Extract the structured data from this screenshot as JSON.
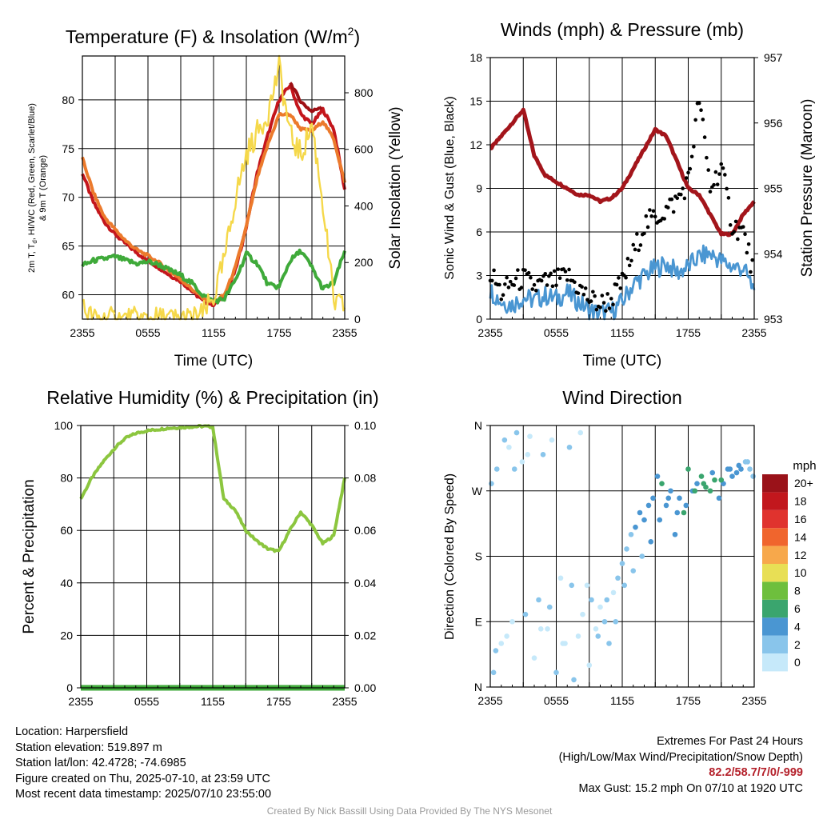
{
  "colors": {
    "red": "#c4161c",
    "darkred": "#9e0f14",
    "orange": "#ec7a2c",
    "green": "#3faa3a",
    "yellow": "#f5d84a",
    "blue": "#4a96d2",
    "maroon": "#a3151b",
    "rh_green": "#8cc63f",
    "precip_green": "#3faa3a",
    "grid": "#000000"
  },
  "chart_data": [
    {
      "type": "line",
      "title_main": "Temperature (F) & Insolation (W/m",
      "title_sup": "2",
      "title_end": ")",
      "xlabel": "Time (UTC)",
      "ylabel_left_main": "2m T, T",
      "ylabel_left_line2": "& 9m T (Orange)",
      "ylabel_right": "Solar Insolation (Yellow)",
      "x_ticks": [
        "2355",
        "0555",
        "1155",
        "1755",
        "2355"
      ],
      "ylim_left": [
        57.5,
        84.5
      ],
      "y_ticks_left": [
        60,
        65,
        70,
        75,
        80
      ],
      "ylim_right": [
        0,
        930
      ],
      "y_ticks_right": [
        0,
        200,
        400,
        600,
        800
      ],
      "x_hours": [
        0,
        1,
        2,
        3,
        4,
        5,
        6,
        7,
        8,
        9,
        10,
        11,
        12,
        13,
        14,
        15,
        16,
        17,
        18,
        19,
        20,
        21,
        22,
        23,
        24
      ],
      "series": [
        {
          "key": "temp_2m",
          "color": "#c4161c",
          "axis": "left",
          "values": [
            72.5,
            69.5,
            67.5,
            66.2,
            65.2,
            64.3,
            63.5,
            62.8,
            62.0,
            61.4,
            60.4,
            59.4,
            59.0,
            59.8,
            62.5,
            67.0,
            72.5,
            76.5,
            80.0,
            81.5,
            78.5,
            77.5,
            79.0,
            77.0,
            70.8
          ]
        },
        {
          "key": "heat_index",
          "color": "#9e0f14",
          "axis": "left",
          "values": [
            null,
            null,
            null,
            null,
            null,
            null,
            null,
            null,
            null,
            null,
            null,
            null,
            null,
            null,
            null,
            null,
            null,
            null,
            null,
            81.8,
            79.8,
            78.8,
            79.4,
            null,
            null
          ]
        },
        {
          "key": "temp_9m",
          "color": "#ec7a2c",
          "axis": "left",
          "values": [
            74.0,
            70.5,
            68.0,
            66.7,
            65.5,
            64.6,
            64.0,
            63.3,
            62.4,
            61.6,
            60.6,
            59.7,
            59.2,
            60.0,
            62.8,
            67.0,
            72.0,
            75.5,
            78.5,
            78.5,
            77.0,
            76.8,
            77.8,
            76.0,
            71.5
          ]
        },
        {
          "key": "dewpoint",
          "color": "#3faa3a",
          "axis": "left",
          "values": [
            63.0,
            63.5,
            63.7,
            63.9,
            63.5,
            63.2,
            63.4,
            63.1,
            62.5,
            62.0,
            61.2,
            60.0,
            59.3,
            59.6,
            61.5,
            64.2,
            63.2,
            61.0,
            60.8,
            63.5,
            64.5,
            62.8,
            60.6,
            61.2,
            64.5
          ]
        },
        {
          "key": "insolation",
          "color": "#f5d84a",
          "axis": "right",
          "values": [
            40,
            0,
            0,
            0,
            0,
            0,
            0,
            0,
            0,
            0,
            0,
            15,
            75,
            210,
            430,
            580,
            660,
            730,
            890,
            650,
            580,
            690,
            410,
            60,
            40
          ]
        }
      ]
    },
    {
      "type": "line",
      "title": "Winds (mph) & Pressure (mb)",
      "xlabel": "Time (UTC)",
      "ylabel_left": "Sonic Wind & Gust (Blue, Black)",
      "ylabel_right": "Station Pressure (Maroon)",
      "x_ticks": [
        "2355",
        "0555",
        "1155",
        "1755",
        "2355"
      ],
      "ylim_left": [
        0,
        18
      ],
      "y_ticks_left": [
        0,
        3,
        6,
        9,
        12,
        15,
        18
      ],
      "ylim_right": [
        953,
        957
      ],
      "y_ticks_right": [
        953,
        954,
        955,
        956,
        957
      ],
      "x_hours": [
        0,
        1,
        2,
        3,
        4,
        5,
        6,
        7,
        8,
        9,
        10,
        11,
        12,
        13,
        14,
        15,
        16,
        17,
        18,
        19,
        20,
        21,
        22,
        23,
        24
      ],
      "series": [
        {
          "key": "pressure",
          "color": "#a3151b",
          "axis": "right",
          "values": [
            955.6,
            955.8,
            956.0,
            956.2,
            955.5,
            955.2,
            955.1,
            955.0,
            954.9,
            954.9,
            954.8,
            954.85,
            955.0,
            955.3,
            955.6,
            955.9,
            955.8,
            955.4,
            955.0,
            954.9,
            954.6,
            954.3,
            954.3,
            954.6,
            954.8
          ]
        },
        {
          "key": "wind",
          "color": "#4a96d2",
          "axis": "left",
          "values": [
            2.0,
            1.2,
            1.0,
            1.5,
            1.3,
            1.6,
            1.4,
            1.8,
            1.2,
            0.6,
            0.4,
            0.5,
            1.2,
            2.4,
            3.0,
            3.5,
            3.8,
            3.2,
            3.6,
            4.3,
            4.5,
            4.0,
            3.6,
            3.5,
            2.0
          ]
        },
        {
          "key": "gust",
          "color": "#000000",
          "axis": "left",
          "values": [
            3.2,
            1.8,
            2.5,
            2.8,
            2.2,
            2.5,
            2.6,
            3.0,
            2.2,
            1.4,
            1.0,
            1.4,
            2.5,
            4.5,
            6.5,
            7.0,
            7.5,
            8.2,
            9.5,
            15.2,
            9.0,
            10.5,
            6.5,
            6.0,
            3.0
          ]
        }
      ]
    },
    {
      "type": "line",
      "title": "Relative Humidity (%) & Precipitation (in)",
      "ylabel_left": "Percent & Precipitation",
      "x_ticks": [
        "2355",
        "0555",
        "1155",
        "1755",
        "2355"
      ],
      "ylim_left": [
        0,
        100
      ],
      "y_ticks_left": [
        0,
        20,
        40,
        60,
        80,
        100
      ],
      "ylim_right": [
        0,
        0.1
      ],
      "y_ticks_right": [
        "0.00",
        "0.02",
        "0.04",
        "0.06",
        "0.08",
        "0.10"
      ],
      "x_hours": [
        0,
        1,
        2,
        3,
        4,
        5,
        6,
        7,
        8,
        9,
        10,
        11,
        12,
        13,
        14,
        15,
        16,
        17,
        18,
        19,
        20,
        21,
        22,
        23,
        24
      ],
      "series": [
        {
          "key": "rh",
          "color": "#8cc63f",
          "axis": "left",
          "values": [
            72,
            80,
            86,
            91,
            95,
            97,
            98,
            98.5,
            99,
            99.2,
            99.5,
            99.7,
            99.5,
            72,
            68,
            60,
            56,
            53,
            52,
            60,
            67,
            62,
            55,
            58,
            80
          ]
        },
        {
          "key": "precip",
          "color": "#3faa3a",
          "axis": "right",
          "values": [
            0,
            0,
            0,
            0,
            0,
            0,
            0,
            0,
            0,
            0,
            0,
            0,
            0,
            0,
            0,
            0,
            0,
            0,
            0,
            0,
            0,
            0,
            0,
            0,
            0
          ]
        }
      ]
    },
    {
      "type": "scatter",
      "title": "Wind Direction",
      "ylabel_left": "Direction (Colored By Speed)",
      "x_ticks": [
        "2355",
        "0555",
        "1155",
        "1755",
        "2355"
      ],
      "y_ticks": [
        "N",
        "E",
        "S",
        "W",
        "N"
      ],
      "ylim": [
        0,
        360
      ],
      "legend_title": "mph",
      "legend_labels": [
        "0",
        "2",
        "4",
        "6",
        "8",
        "10",
        "12",
        "14",
        "16",
        "18",
        "20+"
      ],
      "legend_colors": [
        "#c6e9fa",
        "#89c5eb",
        "#4a96d2",
        "#3aa56e",
        "#6ebf3d",
        "#e8df55",
        "#f7a84b",
        "#f0652d",
        "#e0332e",
        "#c2171d",
        "#9a1219"
      ],
      "points_hour": [
        0.1,
        0.3,
        0.6,
        1.0,
        1.3,
        1.7,
        2.0,
        2.4,
        2.9,
        3.2,
        3.6,
        4.0,
        4.4,
        4.8,
        5.2,
        5.6,
        6.0,
        6.4,
        6.8,
        7.2,
        7.6,
        8.0,
        8.4,
        8.8,
        9.2,
        9.6,
        10.0,
        10.4,
        10.8,
        11.2,
        11.6,
        12.0,
        12.4,
        12.8,
        13.2,
        13.6,
        14.0,
        14.4,
        14.8,
        15.2,
        15.6,
        16.0,
        16.4,
        16.8,
        17.2,
        17.6,
        18.0,
        18.4,
        18.8,
        19.2,
        19.6,
        20.0,
        20.4,
        20.8,
        21.2,
        21.6,
        22.0,
        22.4,
        22.8,
        23.2,
        23.6,
        23.9,
        0.5,
        1.5,
        2.2,
        3.4,
        4.6,
        5.4,
        6.6,
        7.4,
        8.2,
        9.0,
        9.8,
        10.6,
        11.4,
        12.2,
        13.0,
        13.8,
        14.6,
        15.4,
        16.2,
        17.0,
        17.8,
        18.6,
        19.4,
        20.2,
        21.0,
        21.8,
        22.6,
        23.4
      ],
      "points_dir": [
        280,
        20,
        300,
        60,
        340,
        330,
        90,
        350,
        310,
        100,
        345,
        40,
        120,
        320,
        80,
        340,
        20,
        150,
        60,
        330,
        10,
        70,
        100,
        140,
        120,
        80,
        110,
        90,
        60,
        130,
        150,
        170,
        190,
        210,
        220,
        240,
        230,
        250,
        260,
        290,
        280,
        250,
        270,
        210,
        260,
        240,
        300,
        270,
        280,
        290,
        275,
        270,
        285,
        260,
        280,
        300,
        290,
        295,
        300,
        310,
        300,
        290,
        50,
        70,
        300,
        320,
        80,
        110,
        60,
        140,
        350,
        30,
        70,
        120,
        90,
        140,
        160,
        180,
        200,
        230,
        260,
        240,
        250,
        270,
        280,
        295,
        285,
        300,
        305,
        310
      ],
      "points_speed": [
        2,
        1,
        1,
        0,
        1,
        0,
        0,
        1,
        0,
        1,
        0,
        0,
        1,
        1,
        0,
        0,
        1,
        0,
        0,
        1,
        1,
        0,
        0,
        0,
        1,
        0,
        0,
        1,
        1,
        0,
        1,
        1,
        2,
        2,
        3,
        3,
        4,
        3,
        4,
        4,
        5,
        3,
        4,
        4,
        4,
        5,
        6,
        4,
        4,
        5,
        6,
        6,
        5,
        4,
        3,
        4,
        3,
        4,
        3,
        2,
        2,
        2,
        1,
        0,
        1,
        0,
        0,
        1,
        0,
        1,
        0,
        0,
        1,
        1,
        1,
        2,
        2,
        2,
        3,
        3,
        4,
        4,
        4,
        6,
        5,
        4,
        5,
        4,
        3,
        2
      ]
    }
  ],
  "info": {
    "location": "Location: Harpersfield",
    "elevation": "Station elevation: 519.897 m",
    "latlon": "Station lat/lon: 42.4728; -74.6985",
    "created": "Figure created on Thu, 2025-07-10, at 23:59 UTC",
    "recent": "Most recent data timestamp: 2025/07/10 23:55:00"
  },
  "extremes": {
    "title": "Extremes For Past 24 Hours",
    "subtitle": "(High/Low/Max Wind/Precipitation/Snow Depth)",
    "values": "82.2/58.7/7/0/-999",
    "gust": "Max Gust: 15.2 mph On 07/10 at 1920 UTC"
  },
  "credit": "Created By Nick Bassill Using Data Provided By The NYS Mesonet"
}
